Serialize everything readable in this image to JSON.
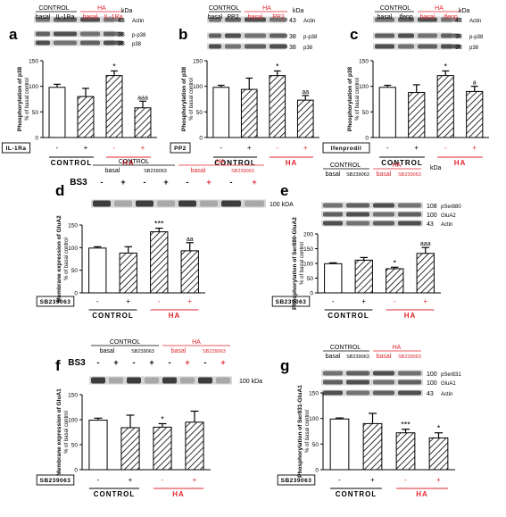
{
  "colors": {
    "accent": "#e0262f",
    "bar_fill": "#ffffff",
    "hatch": "#000000",
    "band": "#3a3a3a"
  },
  "chart_data": [
    {
      "type": "bar",
      "panel": "a",
      "categories": [
        "CONTROL basal",
        "CONTROL IL-1Ra",
        "HA basal",
        "HA IL-1Ra"
      ],
      "values": [
        98,
        80,
        121,
        58
      ],
      "errors": [
        6,
        16,
        9,
        13
      ],
      "annotations": [
        "",
        "",
        "*",
        "aaa"
      ],
      "ylabel": "Phosphorylation of p38",
      "ylabel2": "% of basal control",
      "ylim": [
        0,
        150
      ],
      "yticks": [
        "0",
        "50",
        "100",
        "150"
      ],
      "treatment": "IL-1Ra",
      "signs": [
        "-",
        "+",
        "-",
        "+"
      ],
      "group_labels": [
        "CONTROL",
        "HA"
      ],
      "blot": {
        "header": [
          "CONTROL",
          "HA"
        ],
        "lanes": [
          "basal",
          "IL-1Ra",
          "basal",
          "IL-1Ra"
        ],
        "kda_title": "kDa",
        "rows": [
          {
            "kda": "43",
            "name": "Actin"
          },
          {
            "kda": "38",
            "name": "p-p38"
          },
          {
            "kda": "38",
            "name": "p38"
          }
        ]
      }
    },
    {
      "type": "bar",
      "panel": "b",
      "categories": [
        "CONTROL basal",
        "CONTROL PP2",
        "HA basal",
        "HA PP2"
      ],
      "values": [
        98,
        94,
        121,
        73
      ],
      "errors": [
        4,
        22,
        9,
        9
      ],
      "annotations": [
        "",
        "",
        "*",
        "aa"
      ],
      "ylabel": "Phosphorylation of p38",
      "ylabel2": "% of basal control",
      "ylim": [
        0,
        150
      ],
      "yticks": [
        "0",
        "50",
        "100",
        "150"
      ],
      "treatment": "PP2",
      "signs": [
        "-",
        "+",
        "-",
        "+"
      ],
      "group_labels": [
        "CONTROL",
        "HA"
      ],
      "blot": {
        "header": [
          "CONTROL",
          "HA"
        ],
        "lanes": [
          "basal",
          "PP2",
          "basal",
          "PP2"
        ],
        "kda_title": "kDa",
        "rows": [
          {
            "kda": "43",
            "name": "Actin"
          },
          {
            "kda": "38",
            "name": "p-p38"
          },
          {
            "kda": "38",
            "name": "p38"
          }
        ]
      }
    },
    {
      "type": "bar",
      "panel": "c",
      "categories": [
        "CONTROL basal",
        "CONTROL Ifenprodil",
        "HA basal",
        "HA Ifenprodil"
      ],
      "values": [
        98,
        88,
        121,
        90
      ],
      "errors": [
        4,
        15,
        9,
        10
      ],
      "annotations": [
        "",
        "",
        "*",
        "a"
      ],
      "ylabel": "Phosphorylation of p38",
      "ylabel2": "% of basal control",
      "ylim": [
        0,
        150
      ],
      "yticks": [
        "0",
        "50",
        "100",
        "150"
      ],
      "treatment": "Ifenprodil",
      "signs": [
        "-",
        "+",
        "-",
        "+"
      ],
      "group_labels": [
        "CONTROL",
        "HA"
      ],
      "blot": {
        "header": [
          "CONTROL",
          "HA"
        ],
        "lanes": [
          "basal",
          "Ifenp",
          "basal",
          "Ifenp"
        ],
        "kda_title": "kDa",
        "rows": [
          {
            "kda": "43",
            "name": "Actin"
          },
          {
            "kda": "38",
            "name": "p-p38"
          },
          {
            "kda": "38",
            "name": "p38"
          }
        ]
      }
    },
    {
      "type": "bar",
      "panel": "d",
      "categories": [
        "CONTROL basal",
        "CONTROL SB239063",
        "HA basal",
        "HA SB239063"
      ],
      "values": [
        99,
        88,
        135,
        93
      ],
      "errors": [
        3,
        14,
        8,
        18
      ],
      "annotations": [
        "",
        "",
        "***",
        "aa"
      ],
      "ylabel": "Membrane expression of GluA2",
      "ylabel2": "% of basal control",
      "ylim": [
        0,
        150
      ],
      "yticks": [
        "0",
        "50",
        "100",
        "150"
      ],
      "treatment": "SB239063",
      "signs": [
        "-",
        "+",
        "-",
        "+"
      ],
      "group_labels": [
        "CONTROL",
        "HA"
      ],
      "blot": {
        "header": [
          "CONTROL",
          "HA"
        ],
        "lanes": [
          "basal",
          "SB239063",
          "basal",
          "SB239063"
        ],
        "kda_title": "",
        "bs3": "BS3",
        "bs3_signs": [
          "-",
          "+",
          "-",
          "+",
          "-",
          "+",
          "-",
          "+"
        ],
        "rows": [
          {
            "kda": "100 kDA",
            "name": ""
          }
        ]
      }
    },
    {
      "type": "bar",
      "panel": "e",
      "categories": [
        "CONTROL basal",
        "CONTROL SB239063",
        "HA basal",
        "HA SB239063"
      ],
      "values": [
        99,
        111,
        82,
        134
      ],
      "errors": [
        3,
        9,
        5,
        20
      ],
      "annotations": [
        "",
        "",
        "*",
        "aaa"
      ],
      "ylabel": "Phosphorylation of Ser880-GluA2",
      "ylabel2": "% of basal control",
      "ylim": [
        0,
        200
      ],
      "yticks": [
        "0",
        "50",
        "100",
        "150",
        "200"
      ],
      "treatment": "SB239063",
      "signs": [
        "-",
        "+",
        "-",
        "+"
      ],
      "group_labels": [
        "CONTROL",
        "HA"
      ],
      "blot": {
        "header": [
          "CONTROL",
          "HA"
        ],
        "lanes": [
          "basal",
          "SB239063",
          "basal",
          "SB239063"
        ],
        "kda_title": "kDa",
        "rows": [
          {
            "kda": "108",
            "name": "pSer880"
          },
          {
            "kda": "100",
            "name": "GluA2"
          },
          {
            "kda": "43",
            "name": "Actin"
          }
        ]
      }
    },
    {
      "type": "bar",
      "panel": "f",
      "categories": [
        "CONTROL basal",
        "CONTROL SB239063",
        "HA basal",
        "HA SB239063"
      ],
      "values": [
        99,
        84,
        85,
        95
      ],
      "errors": [
        4,
        25,
        7,
        22
      ],
      "annotations": [
        "",
        "",
        "*",
        ""
      ],
      "ylabel": "Membrane expression of GluA1",
      "ylabel2": "% of basal control",
      "ylim": [
        0,
        150
      ],
      "yticks": [
        "0",
        "50",
        "100",
        "150"
      ],
      "treatment": "SB239063",
      "signs": [
        "-",
        "+",
        "-",
        "+"
      ],
      "group_labels": [
        "CONTROL",
        "HA"
      ],
      "blot": {
        "header": [
          "CONTROL",
          "HA"
        ],
        "lanes": [
          "basal",
          "SB239063",
          "basal",
          "SB239063"
        ],
        "kda_title": "",
        "bs3": "BS3",
        "bs3_signs": [
          "-",
          "+",
          "-",
          "+",
          "-",
          "+",
          "-",
          "+"
        ],
        "rows": [
          {
            "kda": "100 kDa",
            "name": ""
          }
        ]
      }
    },
    {
      "type": "bar",
      "panel": "g",
      "categories": [
        "CONTROL basal",
        "CONTROL SB239063",
        "HA basal",
        "HA SB239063"
      ],
      "values": [
        99,
        90,
        72,
        62
      ],
      "errors": [
        2,
        20,
        7,
        10
      ],
      "annotations": [
        "",
        "",
        "***",
        "*"
      ],
      "ylabel": "Phosphorylation of Ser831-GluA1",
      "ylabel2": "% of basal control",
      "ylim": [
        0,
        150
      ],
      "yticks": [
        "0",
        "50",
        "100",
        "150"
      ],
      "treatment": "SB239063",
      "signs": [
        "-",
        "+",
        "-",
        "+"
      ],
      "group_labels": [
        "CONTROL",
        "HA"
      ],
      "blot": {
        "header": [
          "CONTROL",
          "HA"
        ],
        "lanes": [
          "basal",
          "SB239063",
          "basal",
          "SB239063"
        ],
        "kda_title": "",
        "rows": [
          {
            "kda": "100",
            "name": "pSer831"
          },
          {
            "kda": "100",
            "name": "GluA1"
          },
          {
            "kda": "43",
            "name": "Actin"
          }
        ]
      }
    }
  ]
}
